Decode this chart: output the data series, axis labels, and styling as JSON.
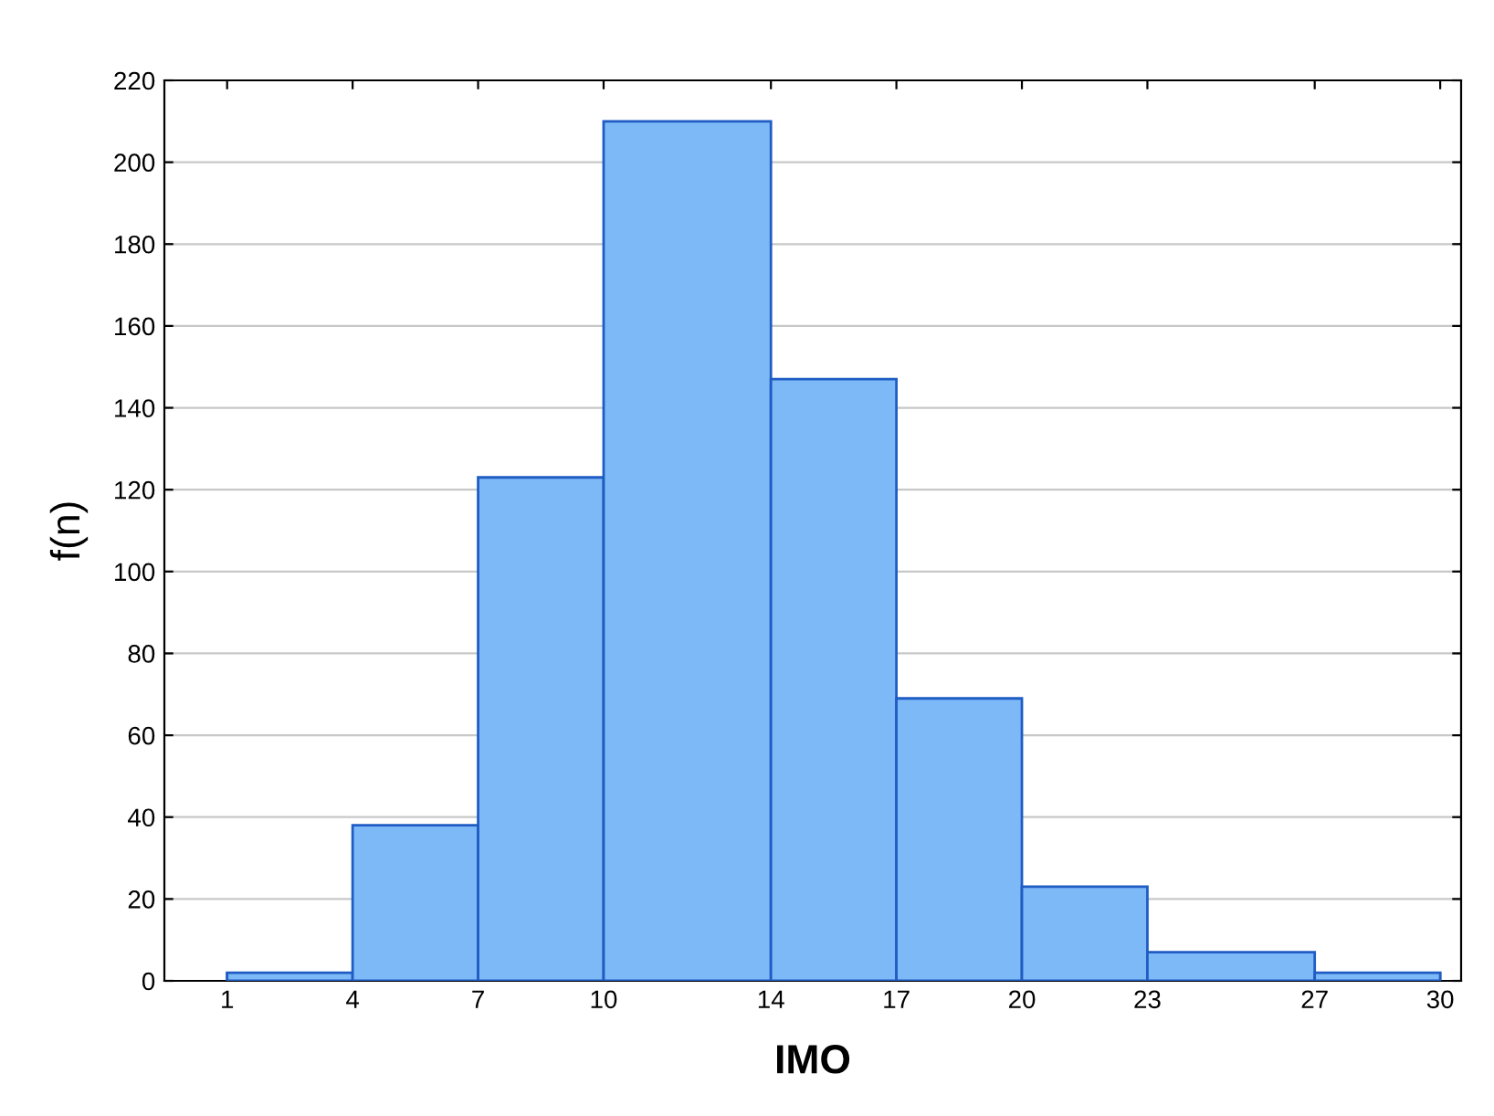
{
  "chart_data": {
    "type": "histogram",
    "xlabel": "IMO",
    "ylabel": "f(n)",
    "bins": [
      1,
      4,
      7,
      10,
      14,
      17,
      20,
      23,
      27,
      30
    ],
    "values": [
      2,
      38,
      123,
      210,
      147,
      69,
      23,
      7,
      2
    ],
    "color": "#7db9f7",
    "xlim": [
      -0.5,
      30.5
    ],
    "xticks": [
      1,
      4,
      7,
      10,
      14,
      17,
      20,
      23,
      27,
      30
    ],
    "ylim": [
      0,
      220
    ],
    "yticks": [
      0,
      20,
      40,
      60,
      80,
      100,
      120,
      140,
      160,
      180,
      200,
      220
    ],
    "grid": "y"
  }
}
